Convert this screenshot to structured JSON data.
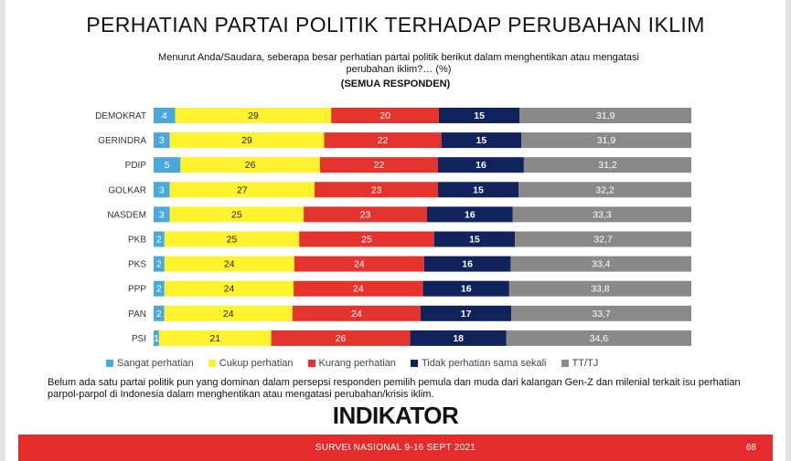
{
  "title": "PERHATIAN PARTAI POLITIK TERHADAP PERUBAHAN IKLIM",
  "subtitle": "Menurut Anda/Saudara, seberapa besar perhatian partai politik berikut dalam menghentikan atau mengatasi perubahan iklim?… (%)",
  "subtitle2": "(SEMUA RESPONDEN)",
  "note": "Belum ada satu partai politik pun yang dominan dalam persepsi responden pemilih pemula dan muda dari kalangan Gen-Z dan milenial terkait isu perhatian parpol-parpol di Indonesia dalam menghentikan atau mengatasi perubahan/krisis iklim.",
  "logo": "INDIKATOR",
  "footer": {
    "text": "SURVEI NASIONAL 9-16 SEPT 2021",
    "page": "68"
  },
  "chart_data": {
    "type": "bar",
    "orientation": "horizontal",
    "stacked": true,
    "categories": [
      "DEMOKRAT",
      "GERINDRA",
      "PDIP",
      "GOLKAR",
      "NASDEM",
      "PKB",
      "PKS",
      "PPP",
      "PAN",
      "PSI"
    ],
    "series": [
      {
        "name": "Sangat perhatian",
        "color": "#4aa8dc",
        "values": [
          4,
          3,
          5,
          3,
          3,
          2,
          2,
          2,
          2,
          1
        ],
        "labels": [
          "4",
          "3",
          "5",
          "3",
          "3",
          "2",
          "2",
          "2",
          "2",
          "1"
        ]
      },
      {
        "name": "Cukup perhatian",
        "color": "#fff22e",
        "values": [
          29,
          29,
          26,
          27,
          25,
          25,
          24,
          24,
          24,
          21
        ],
        "labels": [
          "29",
          "29",
          "26",
          "27",
          "25",
          "25",
          "24",
          "24",
          "24",
          "21"
        ]
      },
      {
        "name": "Kurang perhatian",
        "color": "#e5332d",
        "values": [
          20,
          22,
          22,
          23,
          23,
          25,
          24,
          24,
          24,
          26
        ],
        "labels": [
          "20",
          "22",
          "22",
          "23",
          "23",
          "25",
          "24",
          "24",
          "24",
          "26"
        ]
      },
      {
        "name": "Tidak perhatian sama sekali",
        "color": "#10235c",
        "values": [
          15,
          15,
          16,
          15,
          16,
          15,
          16,
          16,
          17,
          18
        ],
        "labels": [
          "15",
          "15",
          "16",
          "15",
          "16",
          "15",
          "16",
          "16",
          "17",
          "18"
        ]
      },
      {
        "name": "TT/TJ",
        "color": "#898989",
        "values": [
          31.9,
          31.9,
          31.2,
          32.2,
          33.3,
          32.7,
          33.4,
          33.8,
          33.7,
          34.6
        ],
        "labels": [
          "31,9",
          "31,9",
          "31,2",
          "32,2",
          "33,3",
          "32,7",
          "33,4",
          "33,8",
          "33,7",
          "34,6"
        ]
      }
    ],
    "legend_position": "bottom",
    "grid": false
  }
}
